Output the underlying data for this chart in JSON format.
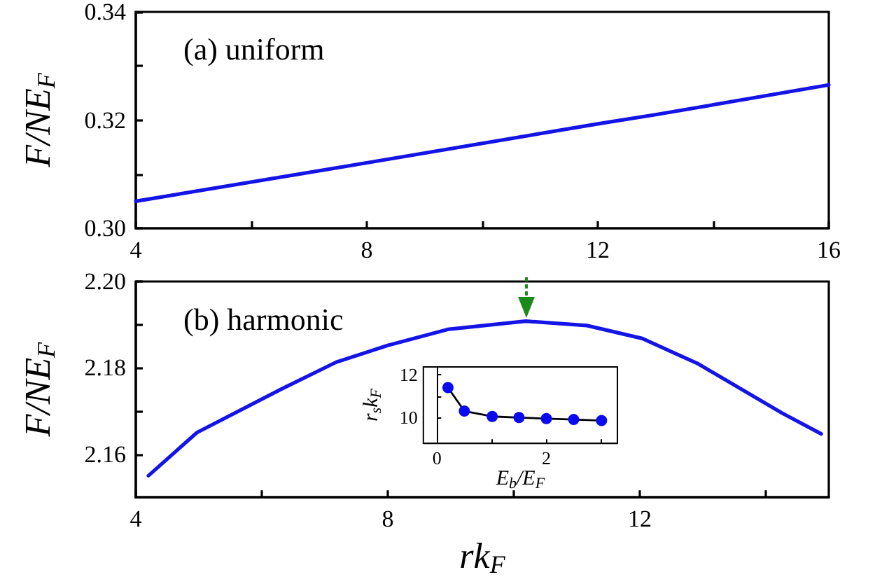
{
  "chart_data": [
    {
      "type": "line",
      "ylabel": "F/NE$_{F}$",
      "annotations": [
        "(a) uniform"
      ],
      "xlim": [
        4,
        16
      ],
      "xticks": [
        4,
        {
          "value": 6,
          "label": null
        },
        8,
        {
          "value": 10,
          "label": null
        },
        12,
        {
          "value": 14,
          "label": null
        },
        16
      ],
      "ylim": [
        0.3,
        0.34
      ],
      "yticks": [
        {
          "value": 0.3,
          "label": "0.30"
        },
        {
          "value": 0.31,
          "label": null
        },
        {
          "value": 0.32,
          "label": "0.32"
        },
        {
          "value": 0.33,
          "label": null
        },
        {
          "value": 0.34,
          "label": "0.34"
        }
      ],
      "marker": "none",
      "series": [
        {
          "color": "#1414e6",
          "x": [
            4,
            8,
            12,
            13,
            16
          ],
          "values": [
            0.305,
            0.3121,
            0.3193,
            0.321,
            0.3265
          ]
        }
      ]
    },
    {
      "type": "line",
      "ylabel": "F/NE$_{F}$",
      "xlabel": "rk$_{F}$",
      "annotations": [
        "(b) harmonic"
      ],
      "xlim": [
        4,
        15
      ],
      "xticks": [
        4,
        {
          "value": 6,
          "label": null
        },
        8,
        {
          "value": 10,
          "label": null
        },
        12,
        {
          "value": 14,
          "label": null
        }
      ],
      "ylim": [
        2.15,
        2.2
      ],
      "yticks": [
        {
          "value": 2.16,
          "label": "2.16"
        },
        {
          "value": 2.17,
          "label": null
        },
        {
          "value": 2.18,
          "label": "2.18"
        },
        {
          "value": 2.19,
          "label": null
        },
        {
          "value": 2.2,
          "label": "2.20"
        }
      ],
      "marker": "none",
      "series": [
        {
          "color": "#1414e6",
          "x": [
            4.2,
            4.97,
            6.3,
            7.18,
            8,
            8.95,
            10.19,
            11.16,
            12.04,
            12.93,
            13.64,
            14.26,
            14.88
          ],
          "values": [
            2.155,
            2.165,
            2.175,
            2.1813,
            2.1852,
            2.1889,
            2.1908,
            2.1898,
            2.1868,
            2.1809,
            2.1748,
            2.1695,
            2.1647
          ]
        }
      ]
    },
    {
      "type": "line",
      "ylabel": "r$_{s}$k$_{F}$",
      "xlabel": "E$_{b}$/E$_{F}$",
      "xlim": [
        -0.25,
        3.3
      ],
      "xticks": [
        {
          "value": 0,
          "label": "0"
        },
        {
          "value": 1,
          "label": null
        },
        {
          "value": 2,
          "label": "2"
        },
        {
          "value": 3,
          "label": null
        }
      ],
      "ylim": [
        8.8,
        12.35
      ],
      "yticks": [
        10,
        {
          "value": 11,
          "label": null
        },
        12
      ],
      "marker": "circle",
      "series": [
        {
          "color": "#0a0af0",
          "x": [
            0.2,
            0.5,
            1.01,
            1.5,
            2.0,
            2.5,
            3.01
          ],
          "values": [
            11.39,
            10.3,
            10.05,
            10.0,
            9.95,
            9.91,
            9.86
          ]
        }
      ]
    }
  ]
}
